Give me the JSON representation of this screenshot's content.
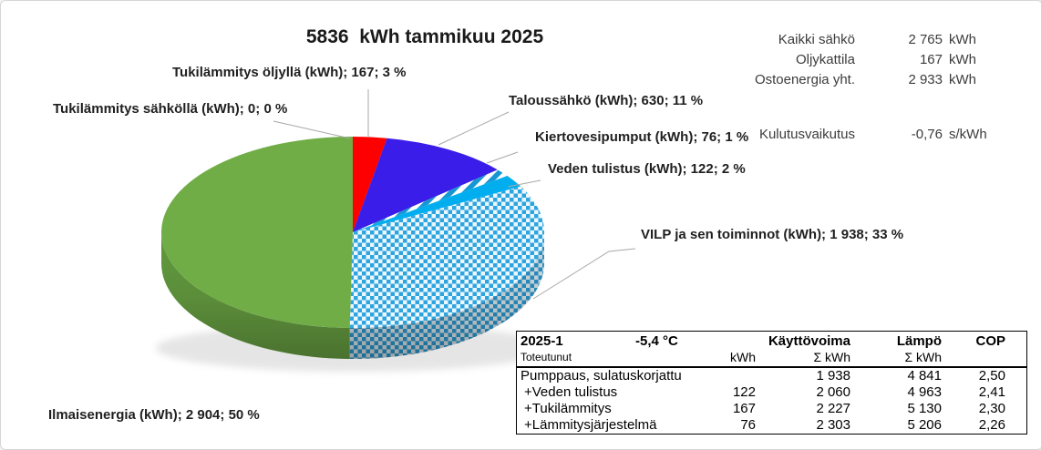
{
  "title": "5836  kWh tammikuu 2025",
  "summary": {
    "rows": [
      {
        "label": "Kaikki sähkö",
        "value": "2 765",
        "unit": "kWh"
      },
      {
        "label": "Oljykattila",
        "value": "167",
        "unit": "kWh"
      },
      {
        "label": "Ostoenergia yht.",
        "value": "2 933",
        "unit": "kWh"
      }
    ],
    "impact": {
      "label": "Kulutusvaikutus",
      "value": "-0,76",
      "unit": "s/kWh"
    }
  },
  "chart_data": {
    "type": "pie",
    "title": "5836  kWh tammikuu 2025",
    "total_kwh": 5836,
    "month": "tammikuu 2025",
    "legend_position": "callouts",
    "colors": {
      "checker_blue": "#2ea4df",
      "checker_light": "#ebf7fd",
      "stripe_blue": "#1697d4",
      "leader_line": "#a8a8a8"
    },
    "slices": [
      {
        "id": "tukilammitys-sahkolla",
        "label": "Tukilämmitys sähköllä (kWh)",
        "value": 0,
        "pct": 0,
        "fill": "#c00000",
        "callout": "Tukilämmitys sähköllä (kWh); 0; 0 %"
      },
      {
        "id": "tukilammitys-oljylla",
        "label": "Tukilämmitys öljyllä (kWh)",
        "value": 167,
        "pct": 3,
        "fill": "#fe0000",
        "callout": "Tukilämmitys öljyllä (kWh); 167; 3 %"
      },
      {
        "id": "taloussahko",
        "label": "Taloussähkö (kWh)",
        "value": 630,
        "pct": 11,
        "fill": "#3a1de9",
        "callout": "Taloussähkö (kWh); 630; 11 %"
      },
      {
        "id": "kiertovesipumput",
        "label": "Kiertovesipumput (kWh)",
        "value": 76,
        "pct": 1,
        "fill": "stripes",
        "callout": "Kiertovesipumput (kWh); 76; 1 %"
      },
      {
        "id": "veden-tulistus",
        "label": "Veden tulistus (kWh)",
        "value": 122,
        "pct": 2,
        "fill": "#00aeef",
        "callout": "Veden tulistus (kWh); 122; 2 %"
      },
      {
        "id": "vilp",
        "label": "VILP ja sen toiminnot (kWh)",
        "value": 1938,
        "pct": 33,
        "fill": "checker",
        "callout": "VILP ja sen toiminnot (kWh); 1 938; 33 %"
      },
      {
        "id": "ilmaisenergia",
        "label": "Ilmaisenergia (kWh)",
        "value": 2904,
        "pct": 50,
        "fill": "#70ad47",
        "callout": "Ilmaisenergia (kWh); 2 904; 50 %"
      }
    ]
  },
  "table": {
    "period": "2025-1",
    "temperature": "-5,4 °C",
    "columns": {
      "kayttovoima": "Käyttövoima",
      "lampo": "Lämpö",
      "cop": "COP"
    },
    "subheader": {
      "label": "Toteutunut",
      "kwh": "kWh",
      "sum_kwh_power": "Σ kWh",
      "sum_kwh_heat": "Σ kWh"
    },
    "rows": [
      {
        "label": "Pumppaus, sulatuskorjattu",
        "kwh": "",
        "sum_power": "1 938",
        "sum_heat": "4 841",
        "cop": "2,50"
      },
      {
        "label": "+Veden tulistus",
        "kwh": "122",
        "sum_power": "2 060",
        "sum_heat": "4 963",
        "cop": "2,41"
      },
      {
        "label": "+Tukilämmitys",
        "kwh": "167",
        "sum_power": "2 227",
        "sum_heat": "5 130",
        "cop": "2,30"
      },
      {
        "label": "+Lämmitysjärjestelmä",
        "kwh": "76",
        "sum_power": "2 303",
        "sum_heat": "5 206",
        "cop": "2,26"
      }
    ]
  }
}
